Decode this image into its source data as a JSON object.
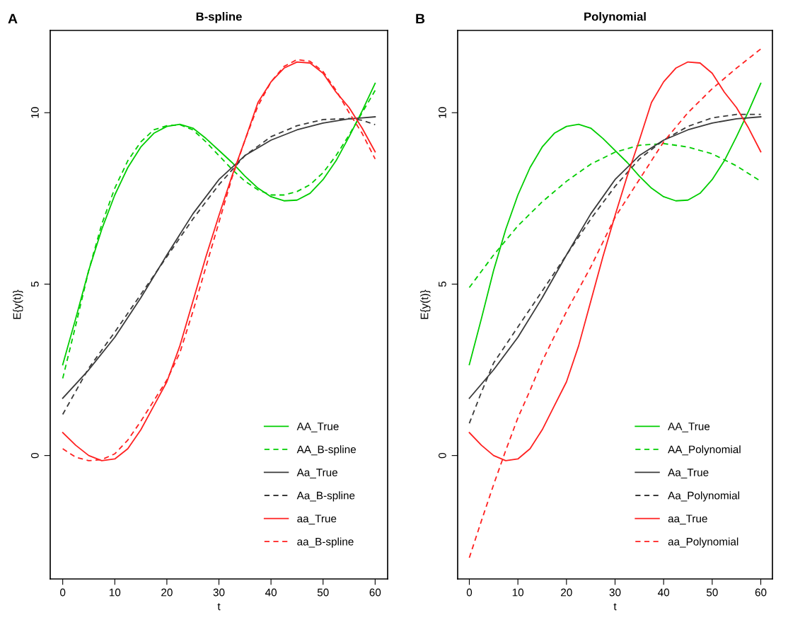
{
  "chart_data": [
    {
      "type": "line",
      "title": "B-spline",
      "xlabel": "t",
      "ylabel": "E{y(t)}",
      "annotations": [
        "A"
      ],
      "xlim": [
        -2.4,
        62.4
      ],
      "ylim": [
        -3.6,
        12.4
      ],
      "xticks": [
        0,
        10,
        20,
        30,
        40,
        50,
        60
      ],
      "yticks": [
        0,
        5,
        10
      ],
      "legend": "bottom right",
      "series": [
        {
          "name": "AA_True",
          "color": "#00cd00",
          "line_style": "solid",
          "x": [
            0,
            2.5,
            5,
            7.5,
            10,
            12.5,
            15,
            17.5,
            20,
            22.5,
            25,
            27.5,
            30,
            32.5,
            35,
            37.5,
            40,
            42.5,
            45,
            47.5,
            50,
            52.5,
            55,
            57.5,
            60
          ],
          "values": [
            2.65,
            4.0,
            5.4,
            6.6,
            7.6,
            8.4,
            9.0,
            9.4,
            9.6,
            9.66,
            9.55,
            9.25,
            8.9,
            8.55,
            8.15,
            7.8,
            7.55,
            7.43,
            7.45,
            7.65,
            8.05,
            8.6,
            9.3,
            10.05,
            10.86
          ]
        },
        {
          "name": "AA_B-spline",
          "color": "#00cd00",
          "line_style": "dashed",
          "x": [
            0,
            2.5,
            5,
            7.5,
            10,
            12.5,
            15,
            17.5,
            20,
            22.5,
            25,
            27.5,
            30,
            32.5,
            35,
            37.5,
            40,
            42.5,
            45,
            47.5,
            50,
            52.5,
            55,
            57.5,
            60
          ],
          "values": [
            2.25,
            3.8,
            5.4,
            6.75,
            7.8,
            8.6,
            9.15,
            9.5,
            9.62,
            9.65,
            9.5,
            9.15,
            8.75,
            8.35,
            8.0,
            7.75,
            7.6,
            7.6,
            7.7,
            7.9,
            8.25,
            8.75,
            9.35,
            10.0,
            10.65
          ]
        },
        {
          "name": "Aa_True",
          "color": "#3a3a3a",
          "line_style": "solid",
          "x": [
            0,
            5,
            10,
            15,
            20,
            25,
            30,
            35,
            40,
            45,
            50,
            55,
            60
          ],
          "values": [
            1.67,
            2.5,
            3.45,
            4.6,
            5.85,
            7.05,
            8.05,
            8.75,
            9.2,
            9.5,
            9.7,
            9.82,
            9.88
          ]
        },
        {
          "name": "Aa_B-spline",
          "color": "#3a3a3a",
          "line_style": "dashed",
          "x": [
            0,
            5,
            10,
            15,
            20,
            25,
            30,
            35,
            40,
            45,
            50,
            55,
            57.5,
            60
          ],
          "values": [
            1.2,
            2.55,
            3.6,
            4.7,
            5.8,
            6.9,
            7.9,
            8.75,
            9.3,
            9.62,
            9.8,
            9.83,
            9.78,
            9.65
          ]
        },
        {
          "name": "aa_True",
          "color": "#ff2020",
          "line_style": "solid",
          "x": [
            0,
            2.5,
            5,
            7.5,
            10,
            12.5,
            15,
            17.5,
            20,
            22.5,
            25,
            27.5,
            30,
            32.5,
            35,
            37.5,
            40,
            42.5,
            45,
            47.5,
            50,
            52.5,
            55,
            57.5,
            60
          ],
          "values": [
            0.67,
            0.3,
            0.0,
            -0.15,
            -0.1,
            0.2,
            0.75,
            1.45,
            2.15,
            3.2,
            4.5,
            5.8,
            7.0,
            8.15,
            9.2,
            10.3,
            10.9,
            11.3,
            11.48,
            11.45,
            11.15,
            10.6,
            10.15,
            9.55,
            8.86
          ]
        },
        {
          "name": "aa_B-spline",
          "color": "#ff2020",
          "line_style": "dashed",
          "x": [
            0,
            2.5,
            5,
            7.5,
            10,
            12.5,
            15,
            17.5,
            20,
            22.5,
            25,
            27.5,
            30,
            32.5,
            35,
            37.5,
            40,
            42.5,
            45,
            47.5,
            50,
            52.5,
            55,
            57.5,
            60
          ],
          "values": [
            0.2,
            -0.05,
            -0.15,
            -0.12,
            0.05,
            0.45,
            1.0,
            1.6,
            2.2,
            3.0,
            4.2,
            5.5,
            6.8,
            8.1,
            9.2,
            10.2,
            10.9,
            11.35,
            11.55,
            11.5,
            11.2,
            10.65,
            10.0,
            9.4,
            8.65
          ]
        }
      ]
    },
    {
      "type": "line",
      "title": "Polynomial",
      "xlabel": "t",
      "ylabel": "E{y(t)}",
      "annotations": [
        "B"
      ],
      "xlim": [
        -2.4,
        62.4
      ],
      "ylim": [
        -3.6,
        12.4
      ],
      "xticks": [
        0,
        10,
        20,
        30,
        40,
        50,
        60
      ],
      "yticks": [
        0,
        5,
        10
      ],
      "legend": "bottom right",
      "series": [
        {
          "name": "AA_True",
          "color": "#00cd00",
          "line_style": "solid",
          "x": [
            0,
            2.5,
            5,
            7.5,
            10,
            12.5,
            15,
            17.5,
            20,
            22.5,
            25,
            27.5,
            30,
            32.5,
            35,
            37.5,
            40,
            42.5,
            45,
            47.5,
            50,
            52.5,
            55,
            57.5,
            60
          ],
          "values": [
            2.65,
            4.0,
            5.4,
            6.6,
            7.6,
            8.4,
            9.0,
            9.4,
            9.6,
            9.66,
            9.55,
            9.25,
            8.9,
            8.55,
            8.15,
            7.8,
            7.55,
            7.43,
            7.45,
            7.65,
            8.05,
            8.6,
            9.3,
            10.05,
            10.86
          ]
        },
        {
          "name": "AA_Polynomial",
          "color": "#00cd00",
          "line_style": "dashed",
          "x": [
            0,
            5,
            10,
            15,
            20,
            25,
            30,
            35,
            40,
            45,
            50,
            55,
            60
          ],
          "values": [
            4.9,
            5.85,
            6.7,
            7.4,
            8.0,
            8.5,
            8.85,
            9.05,
            9.1,
            9.0,
            8.8,
            8.45,
            8.0
          ]
        },
        {
          "name": "Aa_True",
          "color": "#3a3a3a",
          "line_style": "solid",
          "x": [
            0,
            5,
            10,
            15,
            20,
            25,
            30,
            35,
            40,
            45,
            50,
            55,
            60
          ],
          "values": [
            1.67,
            2.5,
            3.45,
            4.6,
            5.85,
            7.05,
            8.05,
            8.75,
            9.2,
            9.5,
            9.7,
            9.82,
            9.88
          ]
        },
        {
          "name": "Aa_Polynomial",
          "color": "#3a3a3a",
          "line_style": "dashed",
          "x": [
            0,
            2.5,
            5,
            10,
            15,
            20,
            25,
            30,
            35,
            40,
            45,
            50,
            55,
            60
          ],
          "values": [
            0.94,
            1.85,
            2.7,
            3.75,
            4.8,
            5.85,
            6.9,
            7.85,
            8.65,
            9.2,
            9.6,
            9.85,
            9.95,
            9.95
          ]
        },
        {
          "name": "aa_True",
          "color": "#ff2020",
          "line_style": "solid",
          "x": [
            0,
            2.5,
            5,
            7.5,
            10,
            12.5,
            15,
            17.5,
            20,
            22.5,
            25,
            27.5,
            30,
            32.5,
            35,
            37.5,
            40,
            42.5,
            45,
            47.5,
            50,
            52.5,
            55,
            57.5,
            60
          ],
          "values": [
            0.67,
            0.3,
            0.0,
            -0.15,
            -0.1,
            0.2,
            0.75,
            1.45,
            2.15,
            3.2,
            4.5,
            5.8,
            7.0,
            8.15,
            9.2,
            10.3,
            10.9,
            11.3,
            11.48,
            11.45,
            11.15,
            10.6,
            10.15,
            9.55,
            8.86
          ]
        },
        {
          "name": "aa_Polynomial",
          "color": "#ff2020",
          "line_style": "dashed",
          "x": [
            0,
            2.5,
            5,
            7.5,
            10,
            12.5,
            15,
            20,
            25,
            30,
            35,
            40,
            45,
            50,
            55,
            60
          ],
          "values": [
            -2.98,
            -1.9,
            -0.85,
            0.15,
            1.1,
            1.9,
            2.75,
            4.2,
            5.5,
            6.95,
            8.05,
            9.15,
            10.0,
            10.7,
            11.3,
            11.86
          ]
        }
      ]
    }
  ]
}
